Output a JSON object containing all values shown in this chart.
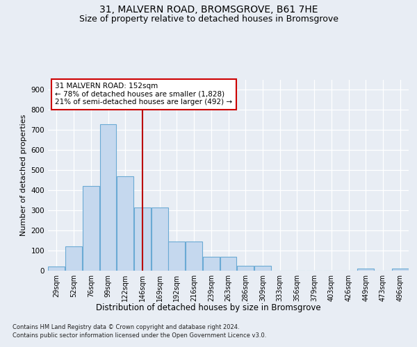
{
  "title1": "31, MALVERN ROAD, BROMSGROVE, B61 7HE",
  "title2": "Size of property relative to detached houses in Bromsgrove",
  "xlabel": "Distribution of detached houses by size in Bromsgrove",
  "ylabel": "Number of detached properties",
  "footer1": "Contains HM Land Registry data © Crown copyright and database right 2024.",
  "footer2": "Contains public sector information licensed under the Open Government Licence v3.0.",
  "bin_labels": [
    "29sqm",
    "52sqm",
    "76sqm",
    "99sqm",
    "122sqm",
    "146sqm",
    "169sqm",
    "192sqm",
    "216sqm",
    "239sqm",
    "263sqm",
    "286sqm",
    "309sqm",
    "333sqm",
    "356sqm",
    "379sqm",
    "403sqm",
    "426sqm",
    "449sqm",
    "473sqm",
    "496sqm"
  ],
  "bar_values": [
    20,
    120,
    420,
    730,
    470,
    315,
    315,
    145,
    145,
    70,
    70,
    25,
    25,
    0,
    0,
    0,
    0,
    0,
    10,
    0,
    10
  ],
  "bar_color": "#c5d8ee",
  "bar_edge_color": "#6aaad4",
  "red_line_x": 5.0,
  "annotation_text": "31 MALVERN ROAD: 152sqm\n← 78% of detached houses are smaller (1,828)\n21% of semi-detached houses are larger (492) →",
  "annotation_box_color": "#ffffff",
  "annotation_box_edge": "#cc0000",
  "ylim": [
    0,
    950
  ],
  "yticks": [
    0,
    100,
    200,
    300,
    400,
    500,
    600,
    700,
    800,
    900
  ],
  "bg_color": "#e8edf4",
  "plot_bg_color": "#e8edf4",
  "grid_color": "#ffffff",
  "title1_fontsize": 10,
  "title2_fontsize": 9,
  "xlabel_fontsize": 8.5,
  "ylabel_fontsize": 8
}
